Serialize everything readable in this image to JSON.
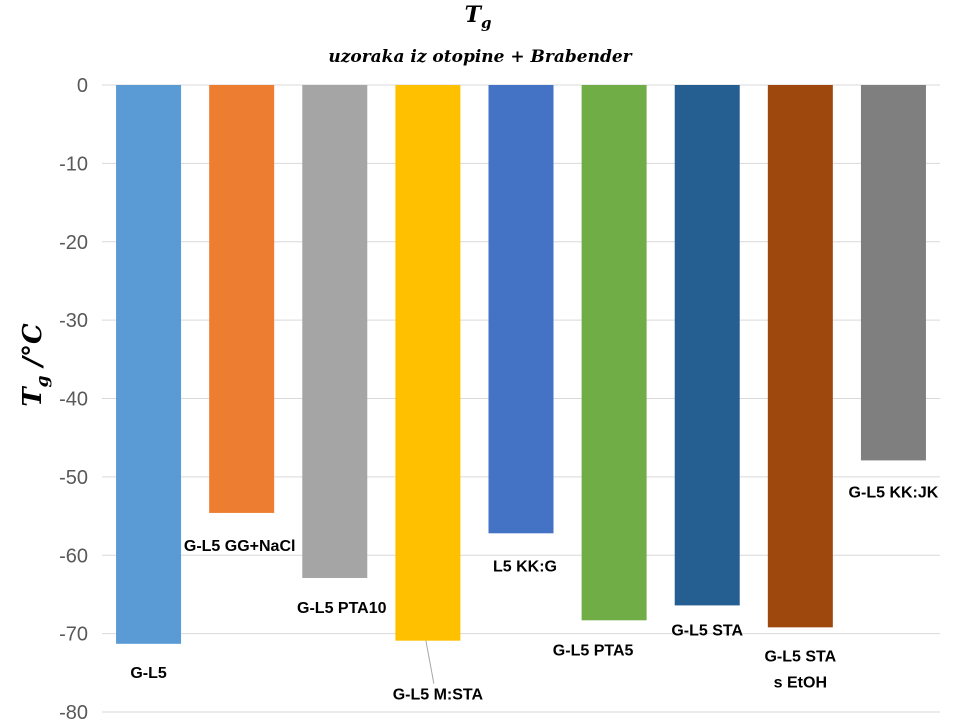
{
  "chart_data": {
    "type": "bar",
    "title": {
      "main": "T",
      "main_sub": "g",
      "subtitle": "uzoraka iz otopine + Brabender"
    },
    "ylabel": {
      "main": "T",
      "sub": "g",
      "unit": " /°C"
    },
    "ylim": [
      -80,
      0
    ],
    "yticks": [
      0,
      -10,
      -20,
      -30,
      -40,
      -50,
      -60,
      -70,
      -80
    ],
    "grid": true,
    "legend": "none",
    "categories": [
      [
        "G-L5"
      ],
      [
        "G-L5 GG+NaCl"
      ],
      [
        "G-L5 PTA10"
      ],
      [
        "G-L5 M:STA"
      ],
      [
        "L5 KK:G"
      ],
      [
        "G-L5 PTA5"
      ],
      [
        "G-L5 STA"
      ],
      [
        "G-L5 STA",
        "s EtOH"
      ],
      [
        "G-L5 KK:JK"
      ]
    ],
    "values": [
      -71.3,
      -54.6,
      -62.9,
      -70.9,
      -57.2,
      -68.3,
      -66.4,
      -69.2,
      -47.9
    ],
    "colors": [
      "#5b9bd5",
      "#ed7d31",
      "#a5a5a5",
      "#ffc000",
      "#4472c4",
      "#70ad47",
      "#255e91",
      "#9e480e",
      "#7f7f7f"
    ]
  }
}
